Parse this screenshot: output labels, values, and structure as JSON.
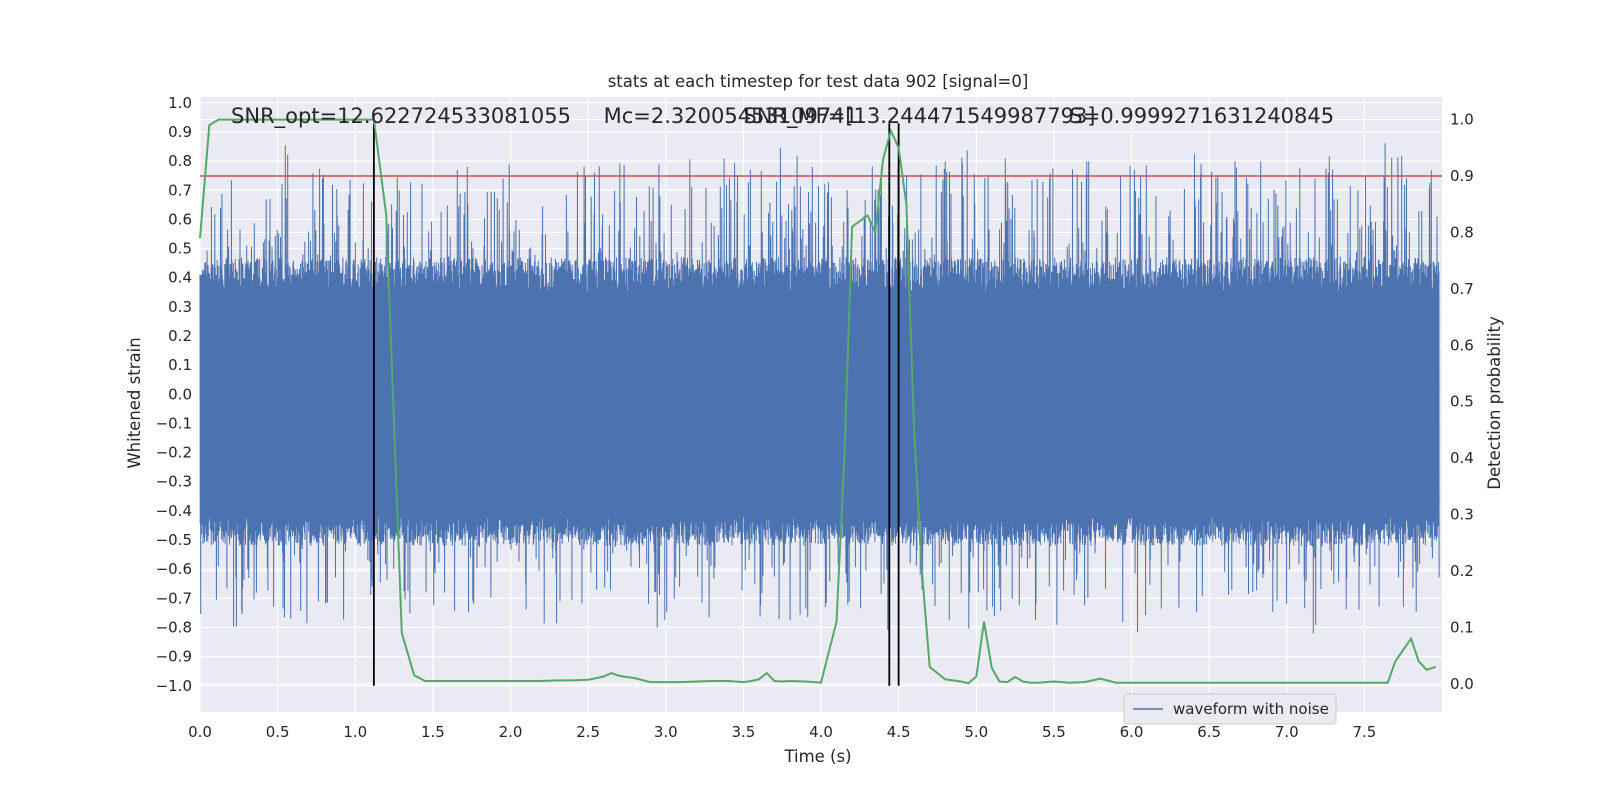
{
  "chart_data": {
    "type": "line",
    "title": "stats at each timestep for test data 902 [signal=0]",
    "xlabel": "Time (s)",
    "ylabel": "Whitened strain",
    "y2label": "Detection probability",
    "xlim": [
      0.0,
      8.0
    ],
    "ylim": [
      -1.09,
      1.02
    ],
    "y2lim": [
      -0.05,
      1.04
    ],
    "xticks": [
      "0.0",
      "0.5",
      "1.0",
      "1.5",
      "2.0",
      "2.5",
      "3.0",
      "3.5",
      "4.0",
      "4.5",
      "5.0",
      "5.5",
      "6.0",
      "6.5",
      "7.0",
      "7.5"
    ],
    "xtick_values": [
      0,
      0.5,
      1,
      1.5,
      2,
      2.5,
      3,
      3.5,
      4,
      4.5,
      5,
      5.5,
      6,
      6.5,
      7,
      7.5
    ],
    "yticks": [
      "1.0",
      "0.9",
      "0.8",
      "0.7",
      "0.6",
      "0.5",
      "0.4",
      "0.3",
      "0.2",
      "0.1",
      "0.0",
      "−0.1",
      "−0.2",
      "−0.3",
      "−0.4",
      "−0.5",
      "−0.6",
      "−0.7",
      "−0.8",
      "−0.9",
      "−1.0"
    ],
    "ytick_values": [
      1.0,
      0.9,
      0.8,
      0.7,
      0.6,
      0.5,
      0.4,
      0.3,
      0.2,
      0.1,
      0.0,
      -0.1,
      -0.2,
      -0.3,
      -0.4,
      -0.5,
      -0.6,
      -0.7,
      -0.8,
      -0.9,
      -1.0
    ],
    "y2ticks": [
      "1.0",
      "0.9",
      "0.8",
      "0.7",
      "0.6",
      "0.5",
      "0.4",
      "0.3",
      "0.2",
      "0.1",
      "0.0"
    ],
    "y2tick_values": [
      1.0,
      0.9,
      0.8,
      0.7,
      0.6,
      0.5,
      0.4,
      0.3,
      0.2,
      0.1,
      0.0
    ],
    "grid": true,
    "background": "#eaeaf2",
    "annotations": [
      {
        "text": "SNR_opt=12.622724533081055",
        "x": 0.2,
        "y": 0.955
      },
      {
        "text": "Mc=2.32005453109741",
        "x": 2.6,
        "y": 0.955
      },
      {
        "text": "SNR_MF=[13.244471549987793]",
        "x": 3.5,
        "y": 0.955
      },
      {
        "text": "S=0.9999271631240845",
        "x": 5.6,
        "y": 0.955
      }
    ],
    "vertical_lines": [
      1.12,
      4.44,
      4.5
    ],
    "threshold": {
      "value": 0.9,
      "axis": "right",
      "color": "#c44e52"
    },
    "series": [
      {
        "name": "waveform with noise",
        "axis": "left",
        "color": "#4c72b0",
        "kind": "noise",
        "envelope": {
          "core_hi": 0.35,
          "core_lo": -0.42,
          "peak_hi": 0.92,
          "peak_lo": -0.98
        }
      },
      {
        "axis": "right",
        "color": "#55a868",
        "x": [
          0.0,
          0.06,
          0.12,
          0.2,
          0.4,
          0.6,
          0.8,
          1.0,
          1.1,
          1.12,
          1.2,
          1.3,
          1.38,
          1.45,
          1.6,
          1.8,
          2.0,
          2.1,
          2.2,
          2.3,
          2.4,
          2.5,
          2.6,
          2.65,
          2.7,
          2.8,
          2.9,
          3.0,
          3.1,
          3.2,
          3.3,
          3.4,
          3.5,
          3.55,
          3.6,
          3.65,
          3.7,
          3.75,
          3.8,
          3.9,
          4.0,
          4.1,
          4.15,
          4.2,
          4.25,
          4.3,
          4.35,
          4.4,
          4.45,
          4.5,
          4.55,
          4.6,
          4.65,
          4.7,
          4.8,
          4.9,
          4.95,
          5.0,
          5.05,
          5.1,
          5.15,
          5.2,
          5.25,
          5.3,
          5.35,
          5.4,
          5.5,
          5.6,
          5.7,
          5.8,
          5.9,
          6.0,
          6.2,
          6.4,
          6.6,
          6.8,
          7.0,
          7.2,
          7.4,
          7.6,
          7.65,
          7.7,
          7.75,
          7.8,
          7.85,
          7.9,
          7.96
        ],
        "values": [
          0.79,
          0.99,
          1.0,
          1.0,
          1.0,
          1.0,
          1.0,
          1.0,
          1.0,
          1.0,
          0.83,
          0.09,
          0.015,
          0.005,
          0.005,
          0.005,
          0.005,
          0.005,
          0.005,
          0.006,
          0.006,
          0.007,
          0.013,
          0.019,
          0.014,
          0.01,
          0.003,
          0.003,
          0.003,
          0.004,
          0.005,
          0.005,
          0.003,
          0.005,
          0.008,
          0.019,
          0.005,
          0.004,
          0.005,
          0.004,
          0.002,
          0.11,
          0.4,
          0.81,
          0.82,
          0.83,
          0.8,
          0.93,
          0.98,
          0.95,
          0.85,
          0.45,
          0.2,
          0.03,
          0.008,
          0.004,
          0.001,
          0.013,
          0.11,
          0.028,
          0.004,
          0.003,
          0.012,
          0.004,
          0.002,
          0.002,
          0.004,
          0.002,
          0.003,
          0.009,
          0.002,
          0.002,
          0.002,
          0.002,
          0.002,
          0.002,
          0.002,
          0.002,
          0.002,
          0.002,
          0.002,
          0.04,
          0.06,
          0.08,
          0.04,
          0.025,
          0.03
        ]
      }
    ],
    "legend": {
      "position": "lower-right",
      "entries": [
        "waveform with noise"
      ]
    }
  }
}
